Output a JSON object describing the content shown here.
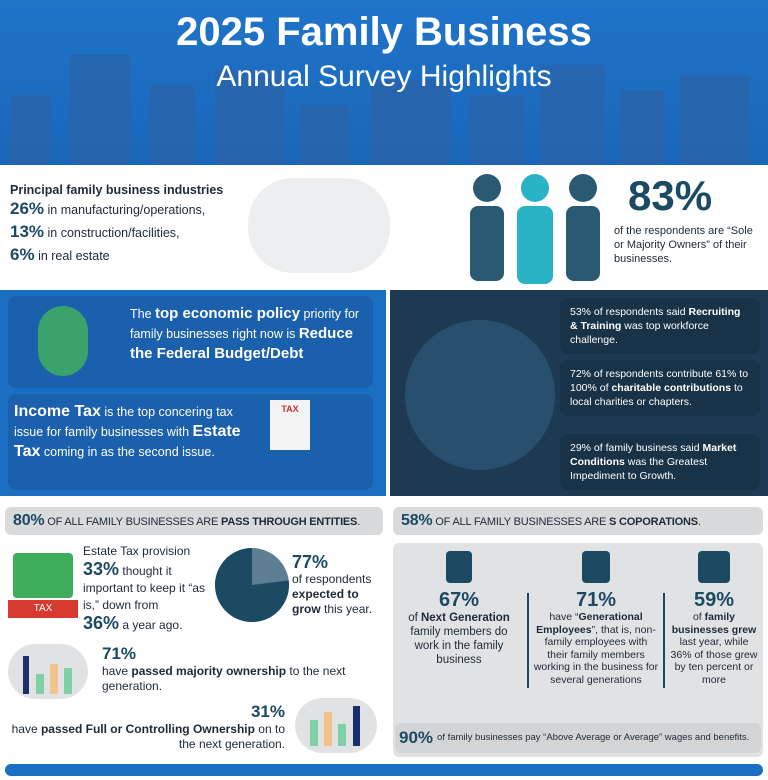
{
  "header": {
    "title_line1": "2025 Family Business",
    "title_line2": "Annual Survey Highlights"
  },
  "industries": {
    "heading": "Principal family business industries",
    "items": [
      {
        "pct": "26%",
        "text": "in manufacturing/operations,"
      },
      {
        "pct": "13%",
        "text": "in construction/facilities,"
      },
      {
        "pct": "6%",
        "text": "in real estate"
      }
    ]
  },
  "owners": {
    "pct": "83%",
    "text": "of the respondents are “Sole or Majority Owners” of their businesses."
  },
  "policy": {
    "pre": "The ",
    "b1": "top economic policy",
    "mid": " priority for family businesses right now is ",
    "b2": "Reduce the Federal Budget/Debt"
  },
  "tax": {
    "b1": "Income Tax",
    "mid": " is the top concering tax issue for family businesses with ",
    "b2": "Estate Tax",
    "post": " coming in as the second issue.",
    "icon_label": "TAX"
  },
  "workforce": [
    {
      "pre": "53% of respondents said ",
      "b": "Recruiting & Training",
      "post": " was top workforce challenge."
    },
    {
      "pre": "72% of respondents contribute 61% to 100% of ",
      "b": "charitable contributions",
      "post": " to local charities or chapters."
    },
    {
      "pre": "29% of family business said ",
      "b": "Market Conditions",
      "post": " was the Greatest Impediment to Growth."
    }
  ],
  "pass_through": {
    "pct": "80%",
    "text": " OF ALL FAMILY BUSINESSES ARE ",
    "b": "PASS THROUGH ENTITIES",
    "post": "."
  },
  "s_corp": {
    "pct": "58%",
    "text": " OF ALL FAMILY BUSINESSES ARE ",
    "b": "S COPORATIONS",
    "post": "."
  },
  "estate": {
    "line1": "Estate Tax provision",
    "pct1": "33%",
    "text1": " thought it important to keep it “as is,” down from",
    "pct2": "36%",
    "text2": " a year ago.",
    "icon_label": "TAX"
  },
  "grow": {
    "pct": "77%",
    "pre": "of respondents ",
    "b": "expected to grow",
    "post": " this year.",
    "pie_value": 77,
    "colors": {
      "main": "#1c4a63",
      "rest": "#5e7f92"
    }
  },
  "majority": {
    "pct": "71%",
    "pre": "have ",
    "b": "passed majority ownership",
    "post": " to the next generation."
  },
  "full": {
    "pct": "31%",
    "pre": "have ",
    "b": "passed Full or Controlling Ownership",
    "post": " on to the next generation."
  },
  "stats": [
    {
      "pct": "67%",
      "icon": "clipboard-checklist-icon",
      "pre": "of ",
      "b": "Next Generation",
      "post": " family members do work in the family business"
    },
    {
      "pct": "71%",
      "icon": "hands-family-icon",
      "pre": "have “",
      "b": "Generational Employees",
      "post": "”, that is, non-family employees with their family members working in the business for several generations"
    },
    {
      "pct": "59%",
      "icon": "growth-chart-icon",
      "pre": "of ",
      "b": "family businesses grew",
      "post": " last year, while 36% of those grew by ten percent or more"
    }
  ],
  "wages": {
    "pct": "90%",
    "text": " of family businesses pay “Above Average or Average” wages and benefits."
  }
}
